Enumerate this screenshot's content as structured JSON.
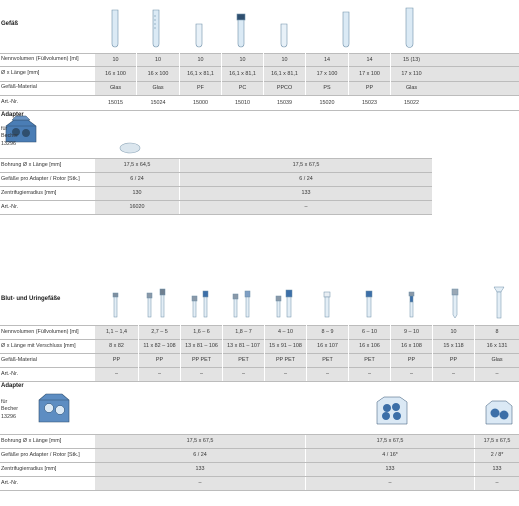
{
  "section1": {
    "title": "Gefäß",
    "rows": [
      {
        "label": "Nennvolumen (Füllvolumen) [ml]",
        "values": [
          "10",
          "10",
          "10",
          "10",
          "10",
          "14",
          "14",
          "15 (13)"
        ]
      },
      {
        "label": "Ø x Länge [mm]",
        "values": [
          "16 x 100",
          "16 x 100",
          "16,1 x 81,1",
          "16,1 x 81,1",
          "16,1 x 81,1",
          "17 x 100",
          "17 x 100",
          "17 x 110"
        ]
      },
      {
        "label": "Gefäß-Material",
        "values": [
          "Glas",
          "Glas",
          "PF",
          "PC",
          "PPCO",
          "PS",
          "PP",
          "Glas"
        ]
      },
      {
        "label": "Art.-Nr.",
        "values": [
          "15015",
          "15024",
          "15000",
          "15010",
          "15039",
          "15020",
          "15023",
          "15022"
        ]
      }
    ],
    "adapter": {
      "title": "Adapter",
      "note": [
        "für",
        "Becher",
        "13296"
      ],
      "rows": [
        {
          "label": "Bohrung Ø x Länge [mm]",
          "values": [
            "17,5 x 64,5",
            "17,5 x 67,5"
          ]
        },
        {
          "label": "Gefäße pro Adapter / Rotor [Stk.]",
          "values": [
            "6 / 24",
            "6 / 24"
          ]
        },
        {
          "label": "Zentrifugierradius [mm]",
          "values": [
            "130",
            "133"
          ]
        },
        {
          "label": "Art.-Nr.",
          "values": [
            "16020",
            "–"
          ]
        }
      ]
    }
  },
  "section2": {
    "title": "Blut- und Uringefäße",
    "rows": [
      {
        "label": "Nennvolumen (Füllvolumen) [ml]",
        "values": [
          "1,1 – 1,4",
          "2,7 – 5",
          "1,6 – 6",
          "1,8 – 7",
          "4 – 10",
          "8 – 9",
          "6 – 10",
          "9 – 10",
          "10",
          "8"
        ]
      },
      {
        "label": "Ø x Länge mit Verschluss [mm]",
        "values": [
          "8 x 82",
          "11 x 82 – 108",
          "13 x 81 – 106",
          "13 x 81 – 107",
          "15 x 91 – 108",
          "16 x 107",
          "16 x 106",
          "16 x 108",
          "15 x 118",
          "16 x 131"
        ]
      },
      {
        "label": "Gefäß-Material",
        "values": [
          "PP",
          "PP",
          "PP PET",
          "PET",
          "PP PET",
          "PET",
          "PET",
          "PP",
          "PP",
          "Glas"
        ]
      },
      {
        "label": "Art.-Nr.",
        "values": [
          "–",
          "–",
          "–",
          "–",
          "–",
          "–",
          "–",
          "–",
          "–",
          "–"
        ]
      }
    ],
    "adapter": {
      "title": "Adapter",
      "note": [
        "für",
        "Becher",
        "13296"
      ],
      "rows": [
        {
          "label": "Bohrung Ø x Länge [mm]",
          "values": [
            "17,5 x 67,5",
            "17,5 x 67,5",
            "17,5 x 67,5"
          ]
        },
        {
          "label": "Gefäße pro Adapter / Rotor [Stk.]",
          "values": [
            "6 / 24",
            "4 / 16*",
            "2 / 8*"
          ]
        },
        {
          "label": "Zentrifugierradius [mm]",
          "values": [
            "133",
            "133",
            "133"
          ]
        },
        {
          "label": "Art.-Nr.",
          "values": [
            "–",
            "–",
            "–"
          ]
        }
      ]
    }
  },
  "colors": {
    "band": "#e3e3e3",
    "line": "#bcbcbc",
    "tube": "#cfe3f2",
    "tube_edge": "#6f8fa8",
    "cap_dark": "#2f4f6f",
    "adapter_blue": "#3c6fa8"
  }
}
